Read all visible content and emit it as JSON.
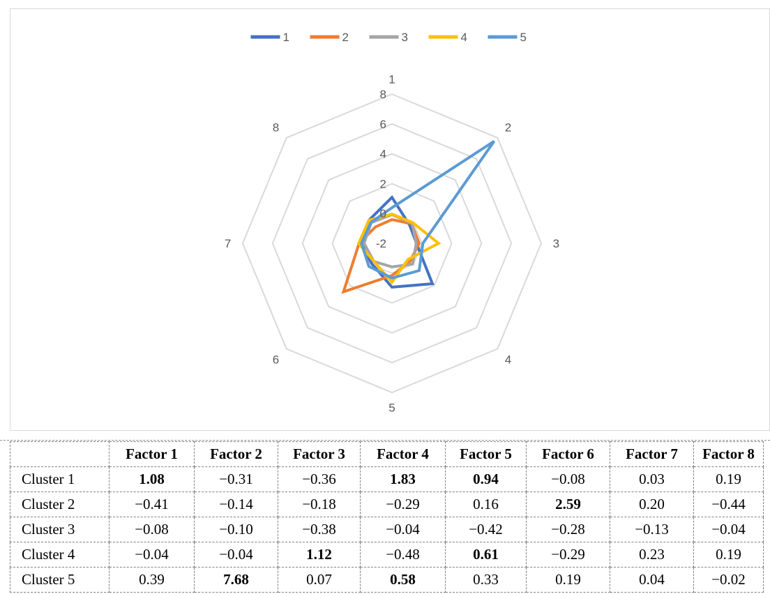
{
  "chart_data": {
    "type": "radar",
    "axes": [
      "1",
      "2",
      "3",
      "4",
      "5",
      "6",
      "7",
      "8"
    ],
    "rlim": [
      -2,
      8
    ],
    "ticks": [
      -2,
      0,
      2,
      4,
      6,
      8
    ],
    "tick_labels": [
      "-2",
      "0",
      "2",
      "4",
      "6",
      "8"
    ],
    "grid": true,
    "legend_position": "top",
    "series": [
      {
        "name": "1",
        "color": "#4472C4",
        "values": [
          1.08,
          -0.31,
          -0.36,
          1.83,
          0.94,
          -0.08,
          0.03,
          0.19
        ]
      },
      {
        "name": "2",
        "color": "#ED7D31",
        "values": [
          -0.41,
          -0.14,
          -0.18,
          -0.29,
          0.16,
          2.59,
          0.2,
          -0.44
        ]
      },
      {
        "name": "3",
        "color": "#A5A5A5",
        "values": [
          -0.08,
          -0.1,
          -0.38,
          -0.04,
          -0.42,
          -0.28,
          -0.13,
          -0.04
        ]
      },
      {
        "name": "4",
        "color": "#FFC000",
        "values": [
          -0.04,
          -0.04,
          1.12,
          -0.48,
          0.61,
          -0.29,
          0.23,
          0.19
        ]
      },
      {
        "name": "5",
        "color": "#5B9BD5",
        "values": [
          0.39,
          7.68,
          0.07,
          0.58,
          0.33,
          0.19,
          0.04,
          -0.02
        ]
      }
    ]
  },
  "table": {
    "headers": [
      "",
      "Factor 1",
      "Factor 2",
      "Factor 3",
      "Factor 4",
      "Factor 5",
      "Factor 6",
      "Factor 7",
      "Factor 8"
    ],
    "rows": [
      {
        "label": "Cluster 1",
        "cells": [
          {
            "text": "1.08",
            "bold": true
          },
          {
            "text": "−0.31"
          },
          {
            "text": "−0.36"
          },
          {
            "text": "1.83",
            "bold": true
          },
          {
            "text": "0.94",
            "bold": true
          },
          {
            "text": "−0.08"
          },
          {
            "text": "0.03"
          },
          {
            "text": "0.19"
          }
        ]
      },
      {
        "label": "Cluster 2",
        "cells": [
          {
            "text": "−0.41"
          },
          {
            "text": "−0.14"
          },
          {
            "text": "−0.18"
          },
          {
            "text": "−0.29"
          },
          {
            "text": "0.16"
          },
          {
            "text": "2.59",
            "bold": true
          },
          {
            "text": "0.20"
          },
          {
            "text": "−0.44"
          }
        ]
      },
      {
        "label": "Cluster 3",
        "cells": [
          {
            "text": "−0.08"
          },
          {
            "text": "−0.10"
          },
          {
            "text": "−0.38"
          },
          {
            "text": "−0.04"
          },
          {
            "text": "−0.42"
          },
          {
            "text": "−0.28"
          },
          {
            "text": "−0.13"
          },
          {
            "text": "−0.04"
          }
        ]
      },
      {
        "label": "Cluster 4",
        "cells": [
          {
            "text": "−0.04"
          },
          {
            "text": "−0.04"
          },
          {
            "text": "1.12",
            "bold": true
          },
          {
            "text": "−0.48"
          },
          {
            "text": "0.61",
            "bold": true
          },
          {
            "text": "−0.29"
          },
          {
            "text": "0.23"
          },
          {
            "text": "0.19"
          }
        ]
      },
      {
        "label": "Cluster 5",
        "cells": [
          {
            "text": "0.39"
          },
          {
            "text": "7.68",
            "bold": true
          },
          {
            "text": "0.07"
          },
          {
            "text": "0.58",
            "bold": true
          },
          {
            "text": "0.33"
          },
          {
            "text": "0.19"
          },
          {
            "text": "0.04"
          },
          {
            "text": "−0.02"
          }
        ]
      }
    ]
  }
}
